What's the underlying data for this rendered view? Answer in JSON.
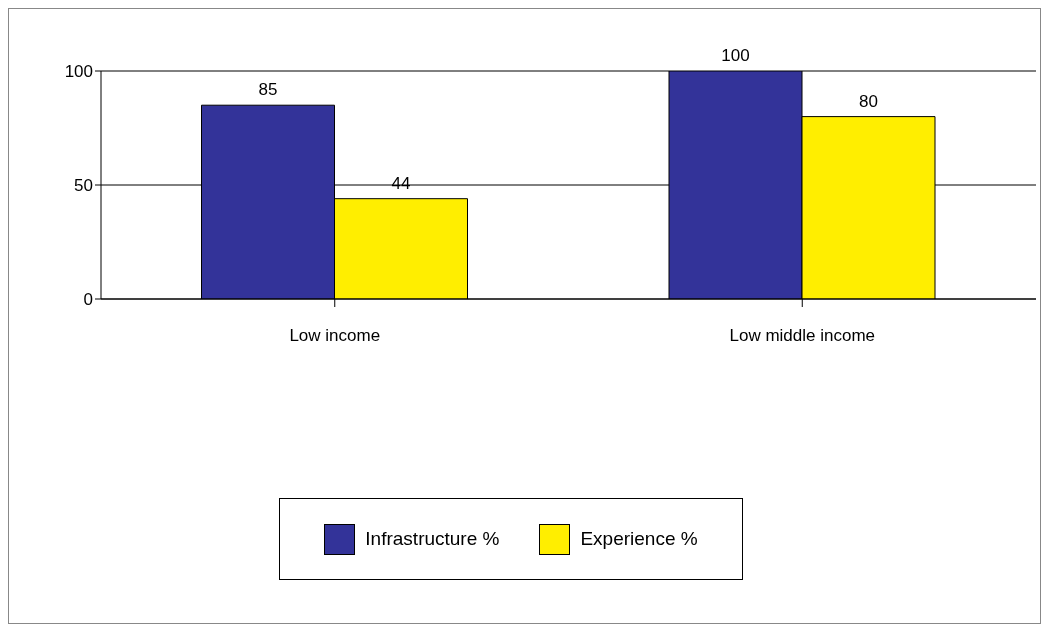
{
  "chart_data": {
    "type": "bar",
    "categories": [
      "Low income",
      "Low middle income"
    ],
    "series": [
      {
        "name": "Infrastructure %",
        "color": "#333399",
        "values": [
          85,
          100
        ]
      },
      {
        "name": "Experience %",
        "color": "#ffee00",
        "values": [
          44,
          80
        ]
      }
    ],
    "ylim": [
      0,
      100
    ],
    "yticks": [
      0,
      50,
      100
    ],
    "grid": "y",
    "legend": "bottom",
    "data_labels": true
  }
}
